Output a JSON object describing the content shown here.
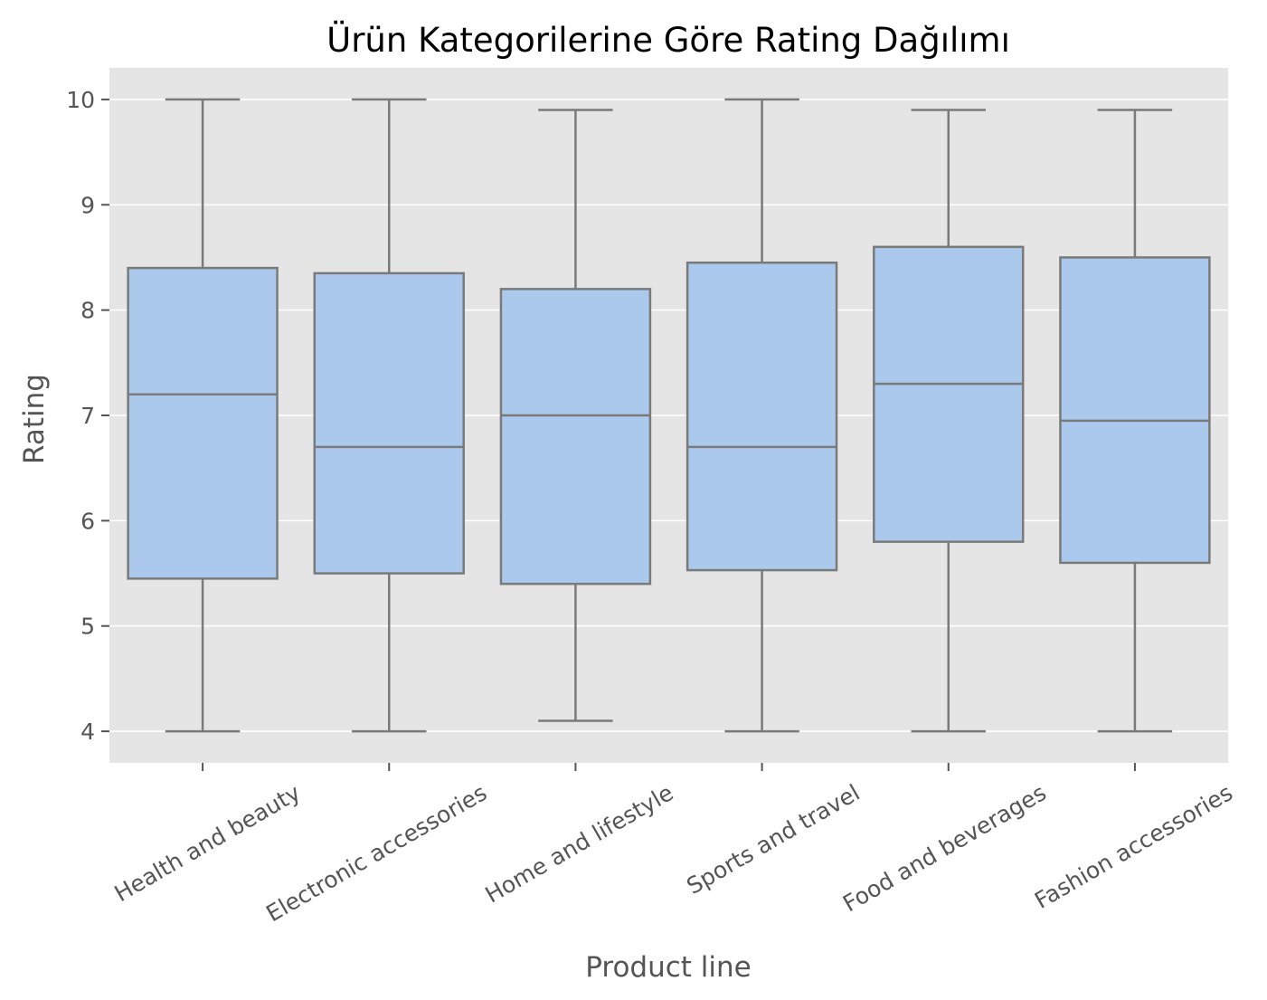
{
  "chart_data": {
    "type": "box",
    "title": "Ürün Kategorilerine Göre Rating Dağılımı",
    "xlabel": "Product line",
    "ylabel": "Rating",
    "ylim": [
      3.7,
      10.3
    ],
    "yticks": [
      4,
      5,
      6,
      7,
      8,
      9,
      10
    ],
    "grid": true,
    "colors": {
      "box_fill": "#abc9ed",
      "box_line": "#7a7a7a",
      "plot_bg": "#e5e5e5"
    },
    "categories": [
      "Health and beauty",
      "Electronic accessories",
      "Home and lifestyle",
      "Sports and travel",
      "Food and beverages",
      "Fashion accessories"
    ],
    "boxes": [
      {
        "category": "Health and beauty",
        "min": 4.0,
        "q1": 5.45,
        "median": 7.2,
        "q3": 8.4,
        "max": 10.0
      },
      {
        "category": "Electronic accessories",
        "min": 4.0,
        "q1": 5.5,
        "median": 6.7,
        "q3": 8.35,
        "max": 10.0
      },
      {
        "category": "Home and lifestyle",
        "min": 4.1,
        "q1": 5.4,
        "median": 7.0,
        "q3": 8.2,
        "max": 9.9
      },
      {
        "category": "Sports and travel",
        "min": 4.0,
        "q1": 5.53,
        "median": 6.7,
        "q3": 8.45,
        "max": 10.0
      },
      {
        "category": "Food and beverages",
        "min": 4.0,
        "q1": 5.8,
        "median": 7.3,
        "q3": 8.6,
        "max": 9.9
      },
      {
        "category": "Fashion accessories",
        "min": 4.0,
        "q1": 5.6,
        "median": 6.95,
        "q3": 8.5,
        "max": 9.9
      }
    ]
  }
}
